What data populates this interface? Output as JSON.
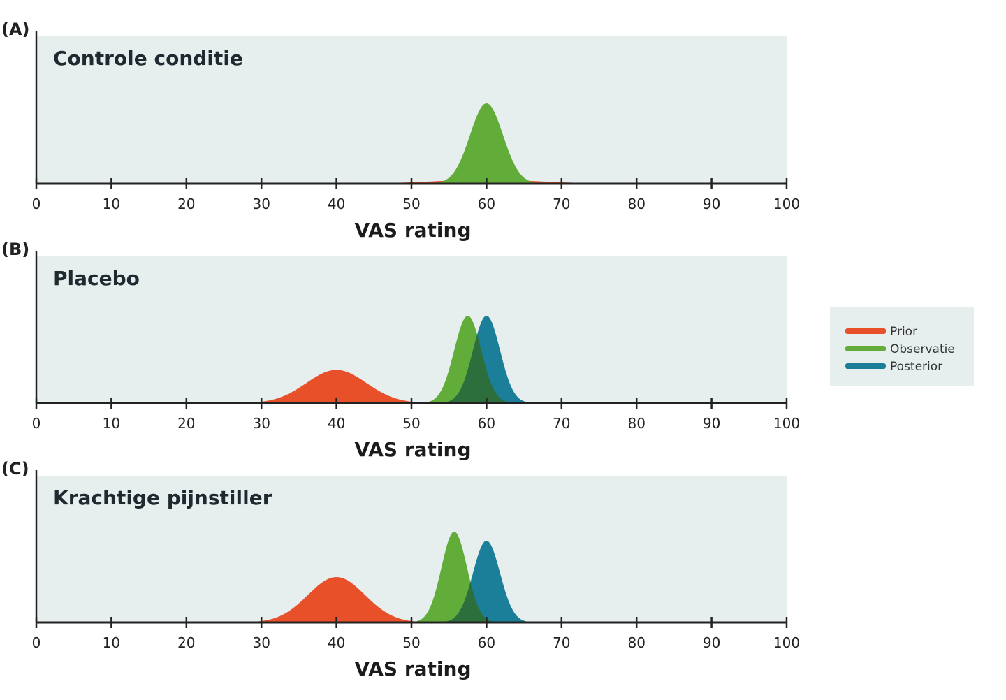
{
  "chart_data": [
    {
      "type": "area",
      "panel_label": "(A)",
      "title": "Controle conditie",
      "xlabel": "VAS rating",
      "xlim": [
        0,
        100
      ],
      "x_ticks": [
        "0",
        "10",
        "20",
        "30",
        "40",
        "50",
        "60",
        "70",
        "80",
        "90",
        "100"
      ],
      "series": [
        {
          "name": "Prior",
          "mean": 60,
          "sd": 7,
          "peak": 0.05
        },
        {
          "name": "Observatie",
          "mean": 60,
          "sd": 2.2,
          "peak": 1.0
        }
      ]
    },
    {
      "type": "area",
      "panel_label": "(B)",
      "title": "Placebo",
      "xlabel": "VAS rating",
      "xlim": [
        0,
        100
      ],
      "x_ticks": [
        "0",
        "10",
        "20",
        "30",
        "40",
        "50",
        "60",
        "70",
        "80",
        "90",
        "100"
      ],
      "series": [
        {
          "name": "Prior",
          "mean": 40,
          "sd": 4,
          "peak": 0.38
        },
        {
          "name": "Observatie",
          "mean": 57.5,
          "sd": 1.8,
          "peak": 1.0
        },
        {
          "name": "Posterior",
          "mean": 60,
          "sd": 1.8,
          "peak": 1.0
        }
      ]
    },
    {
      "type": "area",
      "panel_label": "(C)",
      "title": "Krachtige pijnstiller",
      "xlabel": "VAS rating",
      "xlim": [
        0,
        100
      ],
      "x_ticks": [
        "0",
        "10",
        "20",
        "30",
        "40",
        "50",
        "60",
        "70",
        "80",
        "90",
        "100"
      ],
      "series": [
        {
          "name": "Prior",
          "mean": 40,
          "sd": 3.8,
          "peak": 0.5
        },
        {
          "name": "Observatie",
          "mean": 55.7,
          "sd": 1.7,
          "peak": 1.0
        },
        {
          "name": "Posterior",
          "mean": 60,
          "sd": 1.8,
          "peak": 0.9
        }
      ]
    }
  ],
  "legend": {
    "items": [
      {
        "label": "Prior",
        "color": "#e8502a"
      },
      {
        "label": "Observatie",
        "color": "#62ad3a"
      },
      {
        "label": "Posterior",
        "color": "#1b7f9a"
      }
    ]
  },
  "colors": {
    "panel_background": "#e6eeee",
    "axis": "#222222",
    "overlap": "#2c6f3c"
  }
}
